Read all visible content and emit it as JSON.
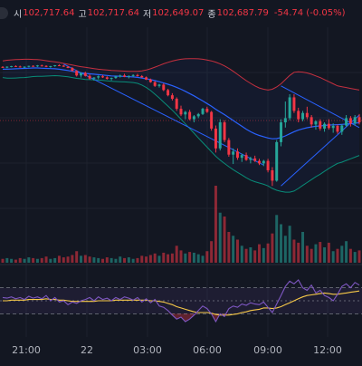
{
  "header": {
    "open_label": "시",
    "open": "102,717.64",
    "high_label": "고",
    "high": "102,717.64",
    "low_label": "저",
    "low": "102,649.07",
    "close_label": "종",
    "close": "102,687.79",
    "change": "-54.74 (-0.05%)"
  },
  "colors": {
    "background": "#131722",
    "up": "#26a69a",
    "down": "#f23645",
    "bb_basis": "#2962ff",
    "bb_upper": "#f23645",
    "bb_lower": "#089981",
    "trendline": "#2962ff",
    "osc_line": "#7e57c2",
    "osc_signal": "#f7c948"
  },
  "chart_data": {
    "type": "candlestick",
    "x_ticks": [
      "21:00",
      "22",
      "03:00",
      "06:00",
      "09:00",
      "12:00"
    ],
    "y_range": [
      0,
      100
    ],
    "candles": [
      [
        83.1,
        83.5,
        82.6,
        83.0
      ],
      [
        83.0,
        83.4,
        82.5,
        83.2
      ],
      [
        83.2,
        83.6,
        82.9,
        83.5
      ],
      [
        83.5,
        83.9,
        83.1,
        83.3
      ],
      [
        83.3,
        83.7,
        82.8,
        83.0
      ],
      [
        83.0,
        83.4,
        82.6,
        83.2
      ],
      [
        83.2,
        83.7,
        82.9,
        83.6
      ],
      [
        83.6,
        83.9,
        83.2,
        83.4
      ],
      [
        83.4,
        84.0,
        83.1,
        83.8
      ],
      [
        83.8,
        84.2,
        83.4,
        83.6
      ],
      [
        83.6,
        83.9,
        83.0,
        83.1
      ],
      [
        83.1,
        83.6,
        82.7,
        83.5
      ],
      [
        83.5,
        84.0,
        83.2,
        83.9
      ],
      [
        83.9,
        84.3,
        83.5,
        83.7
      ],
      [
        83.7,
        84.0,
        83.1,
        83.2
      ],
      [
        83.2,
        83.5,
        82.5,
        82.6
      ],
      [
        82.6,
        83.0,
        81.0,
        81.2
      ],
      [
        81.2,
        81.6,
        78.5,
        79.0
      ],
      [
        79.0,
        80.5,
        78.0,
        80.2
      ],
      [
        80.2,
        80.8,
        78.5,
        78.8
      ],
      [
        78.8,
        79.5,
        77.0,
        77.5
      ],
      [
        77.5,
        78.2,
        76.5,
        78.0
      ],
      [
        78.0,
        79.0,
        77.2,
        78.6
      ],
      [
        78.6,
        79.2,
        77.8,
        78.1
      ],
      [
        78.1,
        78.6,
        77.0,
        77.4
      ],
      [
        77.4,
        78.0,
        76.6,
        77.8
      ],
      [
        77.8,
        78.9,
        77.4,
        78.5
      ],
      [
        78.5,
        79.4,
        78.0,
        79.0
      ],
      [
        79.0,
        79.8,
        78.2,
        78.4
      ],
      [
        78.4,
        79.0,
        77.6,
        78.8
      ],
      [
        78.8,
        79.6,
        78.3,
        79.2
      ],
      [
        79.2,
        79.8,
        78.5,
        78.7
      ],
      [
        78.7,
        79.2,
        77.9,
        78.1
      ],
      [
        78.1,
        78.5,
        76.8,
        77.0
      ],
      [
        77.0,
        77.5,
        75.5,
        75.8
      ],
      [
        75.8,
        76.3,
        73.5,
        74.0
      ],
      [
        74.0,
        75.0,
        73.2,
        74.6
      ],
      [
        74.6,
        75.2,
        71.5,
        72.0
      ],
      [
        72.0,
        72.6,
        69.0,
        69.5
      ],
      [
        69.5,
        70.5,
        67.0,
        67.8
      ],
      [
        67.8,
        68.5,
        62.0,
        63.0
      ],
      [
        63.0,
        64.5,
        59.5,
        60.3
      ],
      [
        60.3,
        62.0,
        58.0,
        61.5
      ],
      [
        61.5,
        62.5,
        57.5,
        58.0
      ],
      [
        58.0,
        60.0,
        56.5,
        59.4
      ],
      [
        59.4,
        61.0,
        58.5,
        60.5
      ],
      [
        60.5,
        63.5,
        60.0,
        63.0
      ],
      [
        63.0,
        64.0,
        61.0,
        61.5
      ],
      [
        61.5,
        62.0,
        52.5,
        53.5
      ],
      [
        53.5,
        55.0,
        42.0,
        44.0
      ],
      [
        44.0,
        58.0,
        43.0,
        56.5
      ],
      [
        56.5,
        57.5,
        47.0,
        48.0
      ],
      [
        48.0,
        49.0,
        40.0,
        41.0
      ],
      [
        41.0,
        44.0,
        36.5,
        42.5
      ],
      [
        42.5,
        44.0,
        38.5,
        39.5
      ],
      [
        39.5,
        41.5,
        37.5,
        40.8
      ],
      [
        40.8,
        42.0,
        38.0,
        38.5
      ],
      [
        38.5,
        40.0,
        36.8,
        39.2
      ],
      [
        39.2,
        40.5,
        37.5,
        38.0
      ],
      [
        38.0,
        39.0,
        36.0,
        36.8
      ],
      [
        36.8,
        38.5,
        35.5,
        38.0
      ],
      [
        38.0,
        39.0,
        32.5,
        33.5
      ],
      [
        33.5,
        35.0,
        26.0,
        28.5
      ],
      [
        28.5,
        48.0,
        28.0,
        47.0
      ],
      [
        47.0,
        58.0,
        45.0,
        56.5
      ],
      [
        56.5,
        66.5,
        54.0,
        58.5
      ],
      [
        58.5,
        70.0,
        57.5,
        68.5
      ],
      [
        68.5,
        70.0,
        61.0,
        62.0
      ],
      [
        62.0,
        63.5,
        56.5,
        58.0
      ],
      [
        58.0,
        62.0,
        57.0,
        61.0
      ],
      [
        61.0,
        64.0,
        58.0,
        59.0
      ],
      [
        59.0,
        60.0,
        54.0,
        55.5
      ],
      [
        55.5,
        57.5,
        53.0,
        57.0
      ],
      [
        57.0,
        58.0,
        52.5,
        53.5
      ],
      [
        53.5,
        56.5,
        52.0,
        55.8
      ],
      [
        55.8,
        58.0,
        53.0,
        53.8
      ],
      [
        53.8,
        56.0,
        51.5,
        54.8
      ],
      [
        54.8,
        55.5,
        51.0,
        52.0
      ],
      [
        52.0,
        55.5,
        50.5,
        55.0
      ],
      [
        55.0,
        60.0,
        54.5,
        58.5
      ],
      [
        58.5,
        59.5,
        54.5,
        56.0
      ],
      [
        56.0,
        60.0,
        55.0,
        59.0
      ],
      [
        59.0,
        60.5,
        55.5,
        56.5
      ]
    ],
    "volumes": [
      5,
      6,
      5,
      4,
      6,
      5,
      7,
      6,
      5,
      6,
      8,
      5,
      6,
      9,
      7,
      8,
      10,
      15,
      9,
      10,
      8,
      7,
      6,
      5,
      7,
      6,
      5,
      8,
      6,
      7,
      5,
      6,
      9,
      8,
      10,
      12,
      9,
      13,
      11,
      12,
      22,
      16,
      12,
      14,
      13,
      11,
      9,
      15,
      28,
      100,
      65,
      60,
      40,
      35,
      30,
      22,
      18,
      20,
      16,
      24,
      19,
      25,
      38,
      62,
      50,
      35,
      48,
      30,
      26,
      40,
      22,
      18,
      24,
      27,
      20,
      26,
      15,
      18,
      22,
      28,
      18,
      14,
      16
    ],
    "oscillator": [
      55,
      54,
      56,
      53,
      55,
      52,
      57,
      54,
      56,
      53,
      58,
      50,
      55,
      48,
      50,
      44,
      48,
      46,
      50,
      52,
      55,
      50,
      56,
      52,
      54,
      50,
      55,
      52,
      56,
      54,
      51,
      55,
      48,
      53,
      47,
      52,
      42,
      40,
      35,
      28,
      22,
      25,
      18,
      22,
      28,
      35,
      42,
      38,
      30,
      18,
      30,
      26,
      38,
      42,
      40,
      45,
      43,
      47,
      45,
      44,
      48,
      40,
      32,
      45,
      58,
      72,
      80,
      76,
      82,
      70,
      66,
      74,
      62,
      66,
      58,
      55,
      50,
      60,
      72,
      76,
      70,
      78,
      74
    ],
    "osc_signal": [
      50,
      50,
      51,
      51,
      51,
      51,
      52,
      52,
      52,
      52,
      53,
      52,
      52,
      51,
      51,
      50,
      49,
      49,
      49,
      49,
      49,
      49,
      50,
      50,
      50,
      50,
      51,
      51,
      51,
      51,
      51,
      51,
      51,
      51,
      50,
      50,
      49,
      48,
      46,
      44,
      41,
      39,
      37,
      35,
      33,
      32,
      32,
      32,
      31,
      29,
      28,
      28,
      28,
      29,
      30,
      32,
      33,
      35,
      36,
      37,
      39,
      39,
      38,
      39,
      41,
      44,
      47,
      50,
      53,
      56,
      58,
      59,
      60,
      61,
      62,
      61,
      60,
      60,
      61,
      62,
      63,
      64,
      65
    ],
    "bollinger": {
      "basis": [
        82,
        82,
        82.1,
        82.2,
        82.3,
        82.4,
        82.5,
        82.6,
        82.6,
        82.5,
        82.4,
        82.3,
        82.2,
        82,
        81.7,
        81.4,
        81,
        80.6,
        80.3,
        80,
        79.8,
        79.6,
        79.4,
        79.2,
        79,
        78.8,
        78.7,
        78.6,
        78.5,
        78.4,
        78.3,
        78.1,
        77.8,
        77.4,
        77,
        76.5,
        76,
        75.4,
        74.8,
        74.1,
        73.3,
        72.4,
        71.4,
        70.3,
        69.2,
        68,
        66.8,
        65.5,
        64.2,
        62.8,
        61.5,
        60.2,
        58.8,
        57.4,
        56,
        54.6,
        53.2,
        52,
        51,
        50.2,
        49.6,
        49,
        48.6,
        48.7,
        49.2,
        50,
        51,
        52,
        52.8,
        53.4,
        53.9,
        54.3,
        54.6,
        54.8,
        55,
        55.2,
        55.3,
        55.4,
        55.5,
        55.7,
        55.9,
        56.1,
        56.3
      ],
      "upper": [
        86,
        86.3,
        86.5,
        86.6,
        86.7,
        86.8,
        86.8,
        86.7,
        86.6,
        86.4,
        86.1,
        85.8,
        85.5,
        85.2,
        84.8,
        84.4,
        84,
        83.6,
        83.2,
        82.9,
        82.6,
        82.3,
        82,
        81.8,
        81.6,
        81.4,
        81.3,
        81.2,
        81.1,
        81,
        81,
        81,
        81.2,
        81.6,
        82.2,
        83,
        83.8,
        84.6,
        85.3,
        85.9,
        86.4,
        86.8,
        87,
        87.1,
        87.1,
        87,
        86.8,
        86.4,
        86,
        85.4,
        84.6,
        83.6,
        82.4,
        81,
        79.5,
        78,
        76.5,
        75.2,
        74,
        73,
        72.4,
        72,
        72.4,
        73.5,
        75,
        77,
        79,
        80.5,
        80.8,
        80.6,
        80.2,
        79.6,
        78.8,
        78,
        77,
        76,
        75,
        74,
        73.6,
        73.2,
        72.8,
        72.4,
        72
      ]
    }
  }
}
